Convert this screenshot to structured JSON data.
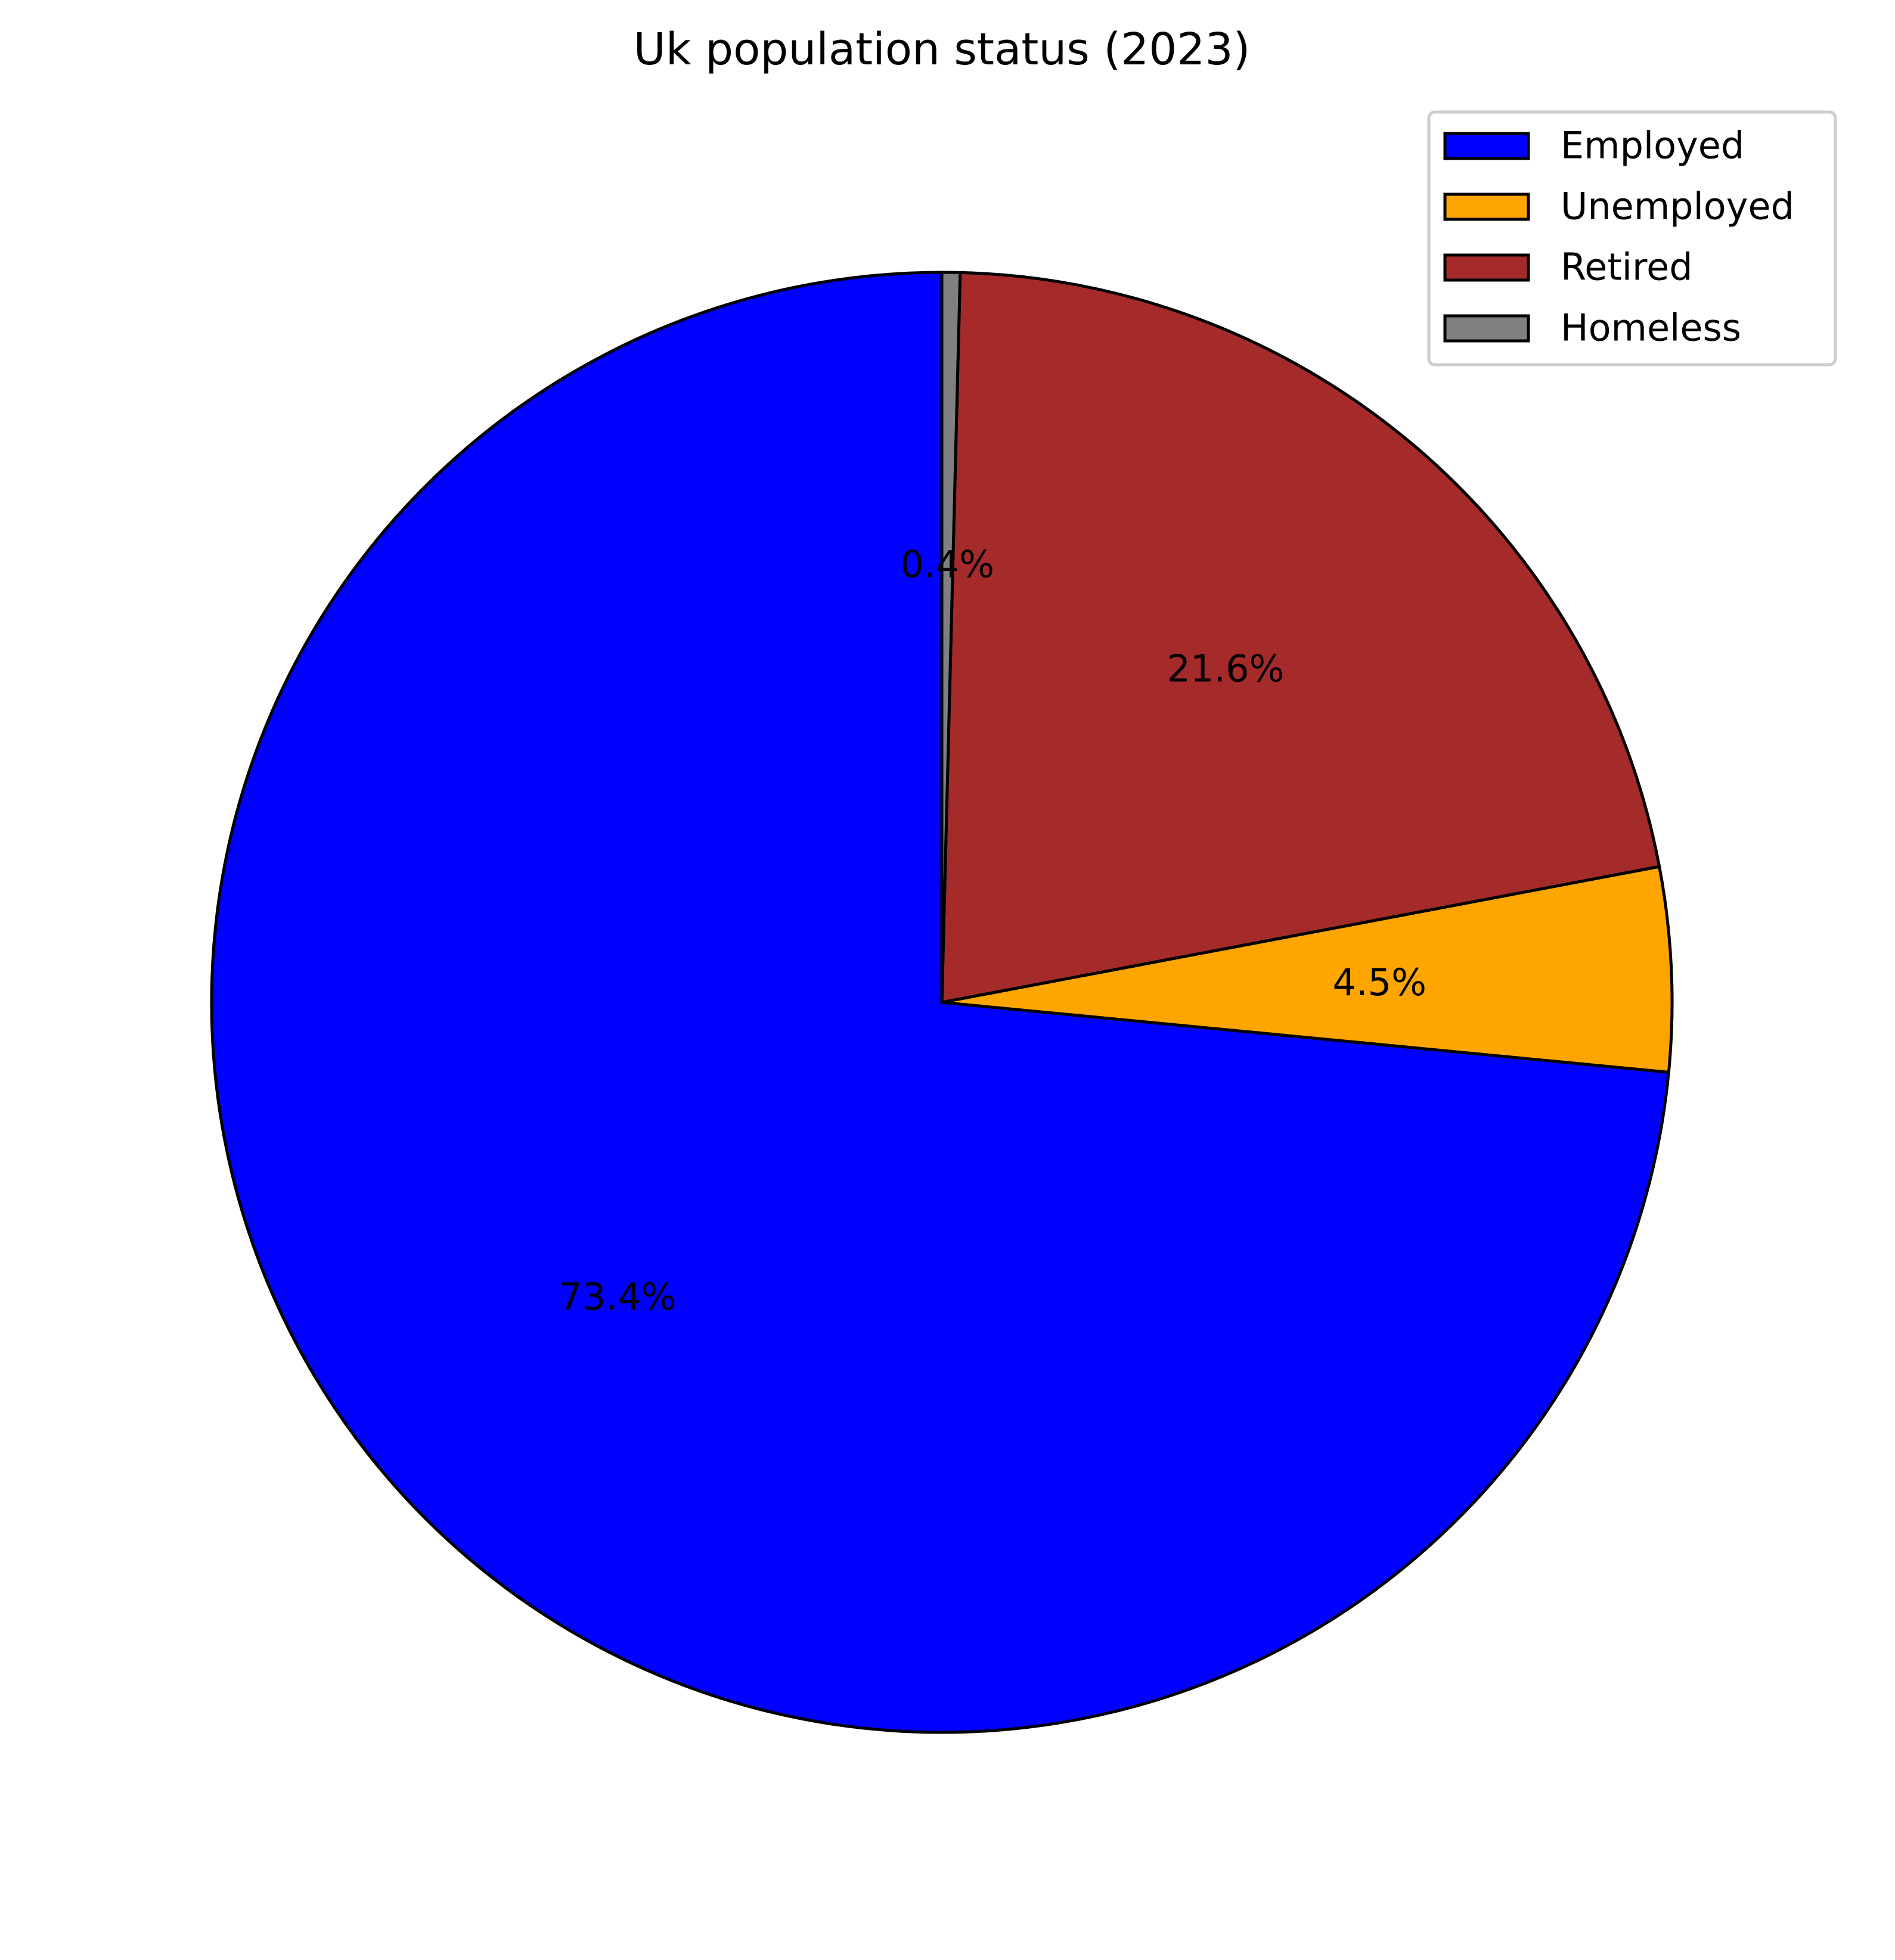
{
  "chart_data": {
    "type": "pie",
    "title": "Uk population status (2023)",
    "categories": [
      "Employed",
      "Unemployed",
      "Retired",
      "Homeless"
    ],
    "values": [
      73.4,
      4.5,
      21.6,
      0.4
    ],
    "value_labels": [
      "73.4%",
      "4.5%",
      "21.6%",
      "0.4%"
    ],
    "colors": [
      "#0000ff",
      "#ffa500",
      "#a52a2a",
      "#808080"
    ],
    "start_angle": 90,
    "direction": "counterclockwise",
    "edge_color": "#000000",
    "legend": {
      "location": "top-right",
      "entries": [
        "Employed",
        "Unemployed",
        "Retired",
        "Homeless"
      ]
    }
  }
}
